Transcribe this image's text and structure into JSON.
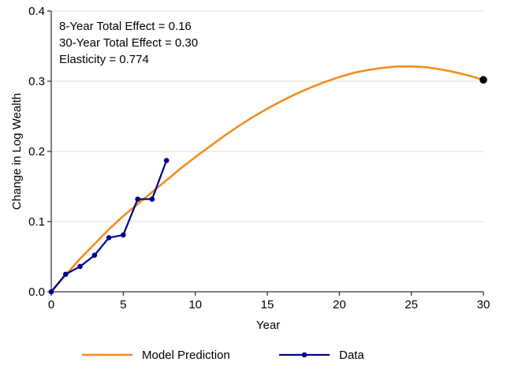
{
  "chart_data": {
    "type": "line",
    "title": "",
    "xlabel": "Year",
    "ylabel": "Change in Log Wealth",
    "xlim": [
      0,
      30
    ],
    "ylim": [
      0,
      0.4
    ],
    "x_ticks": [
      0,
      5,
      10,
      15,
      20,
      25,
      30
    ],
    "x_tick_labels": [
      "0",
      "5",
      "10",
      "15",
      "20",
      "25",
      "30"
    ],
    "y_ticks": [
      0,
      0.1,
      0.2,
      0.3,
      0.4
    ],
    "y_tick_labels": [
      "0.0",
      "0.1",
      "0.2",
      "0.3",
      "0.4"
    ],
    "grid": "horizontal",
    "legend_position": "bottom",
    "annotations": [
      "8-Year Total Effect = 0.16",
      "30-Year Total Effect = 0.30",
      "Elasticity = 0.774"
    ],
    "series": [
      {
        "name": "Model Prediction",
        "style": "line",
        "color": "#f28e1c",
        "x": [
          0,
          1,
          2,
          3,
          4,
          5,
          6,
          7,
          8,
          9,
          10,
          11,
          12,
          13,
          14,
          15,
          16,
          17,
          18,
          19,
          20,
          21,
          22,
          23,
          24,
          25,
          26,
          27,
          28,
          29,
          30
        ],
        "y": [
          0,
          0.024,
          0.047,
          0.068,
          0.089,
          0.108,
          0.125,
          0.142,
          0.159,
          0.176,
          0.192,
          0.207,
          0.222,
          0.236,
          0.249,
          0.261,
          0.272,
          0.282,
          0.291,
          0.299,
          0.306,
          0.312,
          0.316,
          0.319,
          0.321,
          0.321,
          0.32,
          0.317,
          0.313,
          0.308,
          0.302
        ]
      },
      {
        "name": "Data",
        "style": "line-markers",
        "color": "#00008b",
        "x": [
          0,
          1,
          2,
          3,
          4,
          5,
          6,
          7,
          8
        ],
        "y": [
          0,
          0.025,
          0.036,
          0.052,
          0.077,
          0.081,
          0.132,
          0.132,
          0.187
        ]
      }
    ],
    "endpoint_marker": {
      "x": 30,
      "y": 0.302,
      "color": "#000000"
    }
  }
}
